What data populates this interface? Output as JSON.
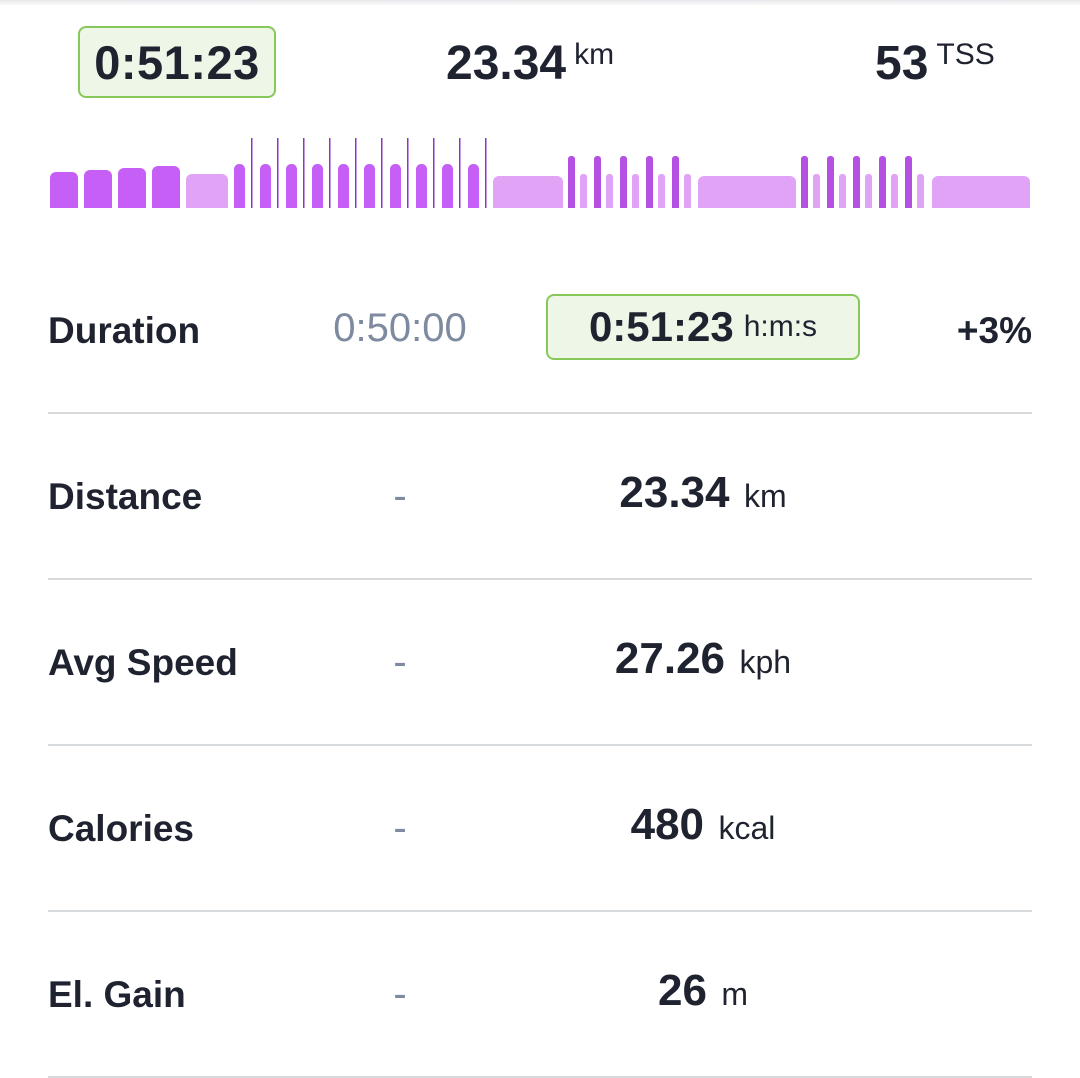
{
  "summary": {
    "duration": "0:51:23",
    "distance_value": "23.34",
    "distance_unit": "km",
    "tss_value": "53",
    "tss_unit": "TSS"
  },
  "profile_colors": {
    "hard": "#c55ff5",
    "easy": "#e0a3f6",
    "dark": "#8e36c4",
    "mid": "#b450e2"
  },
  "metrics": {
    "duration": {
      "label": "Duration",
      "planned": "0:50:00",
      "actual": "0:51:23",
      "unit": "h:m:s",
      "delta": "+3%"
    },
    "distance": {
      "label": "Distance",
      "planned": "-",
      "actual": "23.34",
      "unit": "km"
    },
    "avg_speed": {
      "label": "Avg Speed",
      "planned": "-",
      "actual": "27.26",
      "unit": "kph"
    },
    "calories": {
      "label": "Calories",
      "planned": "-",
      "actual": "480",
      "unit": "kcal"
    },
    "el_gain": {
      "label": "El. Gain",
      "planned": "-",
      "actual": "26",
      "unit": "m"
    }
  }
}
